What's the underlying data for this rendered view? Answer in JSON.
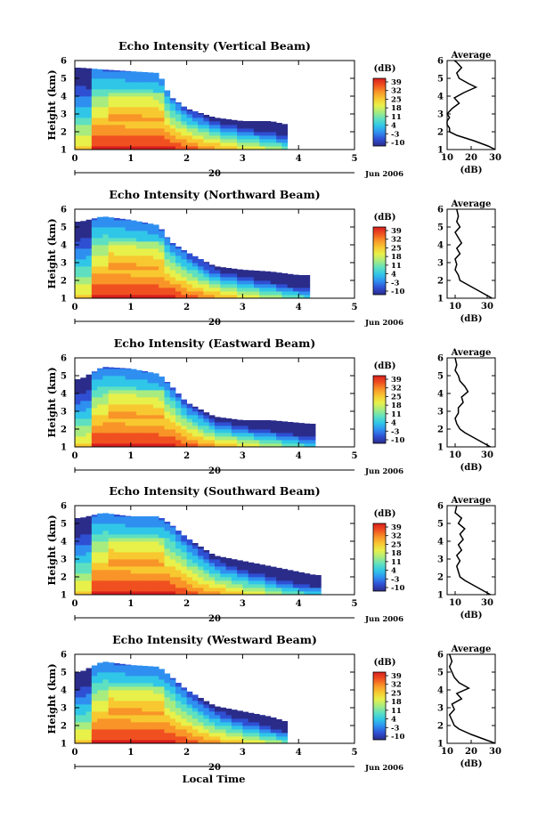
{
  "colors": {
    "scale": [
      "#2b2c8a",
      "#2f4fd3",
      "#2f8ff0",
      "#30c6e8",
      "#5fe0c0",
      "#a8ec80",
      "#e8f04a",
      "#f8c830",
      "#f89428",
      "#f05020",
      "#d81e1e"
    ],
    "line": "#000000"
  },
  "xaxis": {
    "label": "Local Time",
    "day": "20",
    "month_year": "Jun 2006",
    "ticks": [
      "0",
      "1",
      "2",
      "3",
      "4",
      "5"
    ]
  },
  "colorbar": {
    "unit": "(dB)"
  },
  "average": {
    "title": "Average",
    "xlabel": "(dB)"
  },
  "chart_data": [
    {
      "type": "heatmap",
      "title": "Echo Intensity (Vertical Beam)",
      "xlabel": "Local Time",
      "ylabel": "Height (km)",
      "xlim": [
        0,
        5
      ],
      "ylim": [
        1,
        6
      ],
      "yticks": [
        "1",
        "2",
        "3",
        "4",
        "5",
        "6"
      ],
      "colorbar_ticks": [
        "39",
        "32",
        "25",
        "18",
        "11",
        "4",
        "-3",
        "-10"
      ],
      "extent_end": 3.8,
      "top_by_hour": [
        [
          0.1,
          5.6
        ],
        [
          0.5,
          5.5
        ],
        [
          1.0,
          5.4
        ],
        [
          1.5,
          5.3
        ],
        [
          1.7,
          4.0
        ],
        [
          2.0,
          3.3
        ],
        [
          2.5,
          2.8
        ],
        [
          3.0,
          2.6
        ],
        [
          3.5,
          2.6
        ],
        [
          3.8,
          2.4
        ]
      ],
      "average_profile": {
        "xticks": [
          "10",
          "20",
          "30"
        ],
        "xlim": [
          10,
          30
        ],
        "height": [
          1.0,
          1.2,
          1.5,
          1.8,
          2.0,
          2.2,
          2.4,
          2.6,
          2.8,
          3.0,
          3.3,
          3.6,
          3.9,
          4.2,
          4.5,
          4.7,
          5.0,
          5.3,
          5.6,
          5.9,
          6.0
        ],
        "db": [
          30,
          27,
          21,
          14,
          11,
          11,
          10,
          10,
          11,
          10,
          12,
          15,
          13,
          17,
          22,
          19,
          15,
          14,
          16,
          14,
          13
        ]
      }
    },
    {
      "type": "heatmap",
      "title": "Echo Intensity (Northward Beam)",
      "xlabel": "Local Time",
      "ylabel": "Height (km)",
      "xlim": [
        0,
        5
      ],
      "ylim": [
        1,
        6
      ],
      "yticks": [
        "1",
        "2",
        "3",
        "4",
        "5",
        "6"
      ],
      "colorbar_ticks": [
        "39",
        "32",
        "25",
        "18",
        "11",
        "4",
        "-3",
        "-10"
      ],
      "extent_end": 4.2,
      "top_by_hour": [
        [
          0.1,
          5.3
        ],
        [
          0.5,
          5.6
        ],
        [
          1.0,
          5.4
        ],
        [
          1.5,
          5.1
        ],
        [
          1.7,
          4.2
        ],
        [
          2.0,
          3.6
        ],
        [
          2.5,
          2.8
        ],
        [
          3.0,
          2.6
        ],
        [
          3.5,
          2.5
        ],
        [
          4.0,
          2.3
        ]
      ],
      "average_profile": {
        "xticks": [
          "10",
          "30"
        ],
        "xlim": [
          5,
          35
        ],
        "height": [
          1.0,
          1.2,
          1.5,
          1.8,
          2.0,
          2.3,
          2.6,
          2.9,
          3.2,
          3.5,
          3.8,
          4.1,
          4.4,
          4.7,
          5.0,
          5.3,
          5.6,
          6.0
        ],
        "db": [
          33,
          29,
          23,
          17,
          13,
          12,
          10,
          11,
          10,
          13,
          11,
          14,
          12,
          10,
          13,
          11,
          12,
          11
        ]
      }
    },
    {
      "type": "heatmap",
      "title": "Echo Intensity (Eastward Beam)",
      "xlabel": "Local Time",
      "ylabel": "Height (km)",
      "xlim": [
        0,
        5
      ],
      "ylim": [
        1,
        6
      ],
      "yticks": [
        "1",
        "2",
        "3",
        "4",
        "5",
        "6"
      ],
      "colorbar_ticks": [
        "39",
        "32",
        "25",
        "18",
        "11",
        "4",
        "-3",
        "-10"
      ],
      "extent_end": 4.3,
      "top_by_hour": [
        [
          0.1,
          4.8
        ],
        [
          0.5,
          5.5
        ],
        [
          1.0,
          5.4
        ],
        [
          1.5,
          5.1
        ],
        [
          1.7,
          4.5
        ],
        [
          2.0,
          3.5
        ],
        [
          2.5,
          2.7
        ],
        [
          3.0,
          2.5
        ],
        [
          3.5,
          2.5
        ],
        [
          4.2,
          2.3
        ]
      ],
      "average_profile": {
        "xticks": [
          "10",
          "30"
        ],
        "xlim": [
          5,
          35
        ],
        "height": [
          1.0,
          1.2,
          1.5,
          1.8,
          2.0,
          2.3,
          2.6,
          2.9,
          3.2,
          3.5,
          3.8,
          4.1,
          4.4,
          4.7,
          5.0,
          5.3,
          5.6,
          6.0
        ],
        "db": [
          32,
          28,
          22,
          16,
          13,
          11,
          10,
          12,
          12,
          15,
          14,
          18,
          16,
          13,
          12,
          10,
          11,
          10
        ]
      }
    },
    {
      "type": "heatmap",
      "title": "Echo Intensity (Southward Beam)",
      "xlabel": "Local Time",
      "ylabel": "Height (km)",
      "xlim": [
        0,
        5
      ],
      "ylim": [
        1,
        6
      ],
      "yticks": [
        "1",
        "2",
        "3",
        "4",
        "5",
        "6"
      ],
      "colorbar_ticks": [
        "39",
        "32",
        "25",
        "18",
        "11",
        "4",
        "-3",
        "-10"
      ],
      "extent_end": 4.4,
      "top_by_hour": [
        [
          0.1,
          5.3
        ],
        [
          0.5,
          5.6
        ],
        [
          1.0,
          5.4
        ],
        [
          1.5,
          5.4
        ],
        [
          1.7,
          5.0
        ],
        [
          2.0,
          4.2
        ],
        [
          2.5,
          3.2
        ],
        [
          3.0,
          2.9
        ],
        [
          3.5,
          2.6
        ],
        [
          4.3,
          2.1
        ]
      ],
      "average_profile": {
        "xticks": [
          "10",
          "30"
        ],
        "xlim": [
          5,
          35
        ],
        "height": [
          1.0,
          1.2,
          1.5,
          1.8,
          2.0,
          2.3,
          2.6,
          2.9,
          3.2,
          3.5,
          3.8,
          4.1,
          4.4,
          4.7,
          5.0,
          5.3,
          5.6,
          6.0
        ],
        "db": [
          32,
          28,
          22,
          16,
          13,
          12,
          11,
          13,
          11,
          14,
          12,
          15,
          13,
          16,
          12,
          14,
          10,
          11
        ]
      }
    },
    {
      "type": "heatmap",
      "title": "Echo Intensity (Westward Beam)",
      "xlabel": "Local Time",
      "ylabel": "Height (km)",
      "xlim": [
        0,
        5
      ],
      "ylim": [
        1,
        6
      ],
      "yticks": [
        "1",
        "2",
        "3",
        "4",
        "5",
        "6"
      ],
      "colorbar_ticks": [
        "39",
        "32",
        "25",
        "18",
        "11",
        "4",
        "-3",
        "-10"
      ],
      "extent_end": 3.8,
      "top_by_hour": [
        [
          0.1,
          5.0
        ],
        [
          0.5,
          5.6
        ],
        [
          1.0,
          5.4
        ],
        [
          1.5,
          5.3
        ],
        [
          1.7,
          4.8
        ],
        [
          2.0,
          4.0
        ],
        [
          2.5,
          3.1
        ],
        [
          3.0,
          2.8
        ],
        [
          3.5,
          2.5
        ],
        [
          3.8,
          2.2
        ]
      ],
      "average_profile": {
        "xticks": [
          "10",
          "20",
          "30"
        ],
        "xlim": [
          10,
          30
        ],
        "height": [
          1.0,
          1.2,
          1.5,
          1.8,
          2.0,
          2.3,
          2.6,
          2.9,
          3.2,
          3.5,
          3.8,
          4.1,
          4.4,
          4.7,
          5.0,
          5.3,
          5.6,
          6.0
        ],
        "db": [
          30,
          26,
          20,
          15,
          13,
          12,
          11,
          13,
          12,
          16,
          14,
          19,
          15,
          13,
          12,
          11,
          12,
          11
        ]
      }
    }
  ]
}
